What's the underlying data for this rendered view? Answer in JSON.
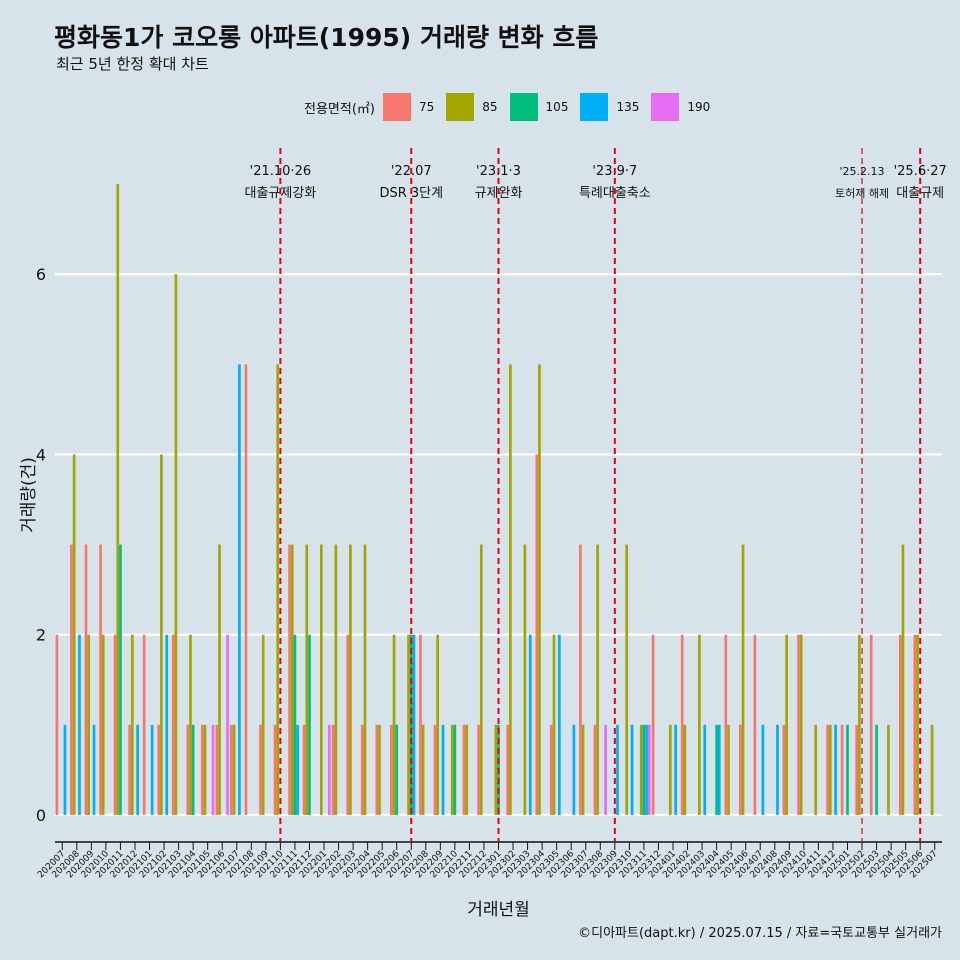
{
  "title": "평화동1가 코오롱 아파트(1995) 거래량 변화 흐름",
  "subtitle": "최근 5년 한정 확대 차트",
  "caption": "©디아파트(dapt.kr) / 2025.07.15 / 자료=국토교통부 실거래가",
  "legend": {
    "title": "전용면적(㎡)",
    "items": [
      {
        "label": "75",
        "color": "#f8766d"
      },
      {
        "label": "85",
        "color": "#a3a500"
      },
      {
        "label": "105",
        "color": "#00bf7d"
      },
      {
        "label": "135",
        "color": "#00b0f6"
      },
      {
        "label": "190",
        "color": "#e76bf3"
      }
    ]
  },
  "chart_data": {
    "type": "bar",
    "xlabel": "거래년월",
    "ylabel": "거래량(건)",
    "ylim": [
      -0.3,
      7.4
    ],
    "yticks": [
      0,
      2,
      4,
      6
    ],
    "grid": true,
    "months": [
      "202007",
      "202008",
      "202009",
      "202010",
      "202011",
      "202012",
      "202101",
      "202102",
      "202103",
      "202104",
      "202105",
      "202106",
      "202107",
      "202108",
      "202109",
      "202110",
      "202111",
      "202112",
      "202201",
      "202202",
      "202203",
      "202204",
      "202205",
      "202206",
      "202207",
      "202208",
      "202209",
      "202210",
      "202211",
      "202212",
      "202301",
      "202302",
      "202303",
      "202304",
      "202305",
      "202306",
      "202307",
      "202308",
      "202309",
      "202310",
      "202311",
      "202312",
      "202401",
      "202402",
      "202403",
      "202404",
      "202405",
      "202406",
      "202407",
      "202408",
      "202409",
      "202410",
      "202411",
      "202412",
      "202501",
      "202502",
      "202503",
      "202504",
      "202505",
      "202506",
      "202507"
    ],
    "series": [
      {
        "name": "75",
        "color": "#f8766d",
        "values": [
          2,
          3,
          3,
          3,
          2,
          1,
          2,
          1,
          2,
          1,
          1,
          1,
          1,
          5,
          1,
          1,
          3,
          1,
          0,
          1,
          2,
          1,
          1,
          1,
          0,
          2,
          1,
          0,
          1,
          1,
          0,
          1,
          0,
          4,
          1,
          0,
          3,
          1,
          0,
          0,
          0,
          2,
          0,
          2,
          0,
          0,
          2,
          1,
          2,
          0,
          1,
          2,
          0,
          1,
          1,
          1,
          2,
          0,
          2,
          2,
          0
        ]
      },
      {
        "name": "85",
        "color": "#a3a500",
        "values": [
          0,
          4,
          2,
          2,
          7,
          2,
          0,
          4,
          6,
          2,
          1,
          3,
          1,
          0,
          2,
          5,
          3,
          3,
          3,
          3,
          3,
          3,
          1,
          2,
          2,
          1,
          2,
          1,
          1,
          3,
          1,
          5,
          3,
          5,
          2,
          0,
          1,
          3,
          0,
          3,
          1,
          0,
          1,
          1,
          2,
          0,
          1,
          3,
          0,
          0,
          2,
          2,
          1,
          1,
          0,
          2,
          0,
          1,
          3,
          2,
          1
        ]
      },
      {
        "name": "105",
        "color": "#00bf7d",
        "values": [
          0,
          0,
          0,
          0,
          3,
          0,
          0,
          0,
          0,
          1,
          0,
          0,
          0,
          0,
          0,
          0,
          2,
          2,
          0,
          0,
          0,
          0,
          0,
          1,
          2,
          0,
          0,
          1,
          0,
          0,
          1,
          0,
          0,
          0,
          0,
          0,
          0,
          0,
          0,
          0,
          1,
          0,
          0,
          0,
          0,
          1,
          0,
          0,
          0,
          0,
          0,
          0,
          0,
          0,
          1,
          0,
          1,
          0,
          0,
          0,
          0
        ]
      },
      {
        "name": "135",
        "color": "#00b0f6",
        "values": [
          1,
          2,
          1,
          0,
          0,
          1,
          1,
          2,
          0,
          0,
          0,
          0,
          5,
          0,
          0,
          0,
          1,
          0,
          0,
          0,
          0,
          0,
          0,
          0,
          2,
          0,
          1,
          0,
          0,
          0,
          0,
          0,
          2,
          0,
          2,
          1,
          0,
          0,
          1,
          1,
          1,
          0,
          1,
          0,
          1,
          1,
          0,
          0,
          1,
          1,
          0,
          0,
          0,
          1,
          0,
          0,
          0,
          0,
          0,
          0,
          0
        ]
      },
      {
        "name": "190",
        "color": "#e76bf3",
        "values": [
          0,
          0,
          0,
          0,
          0,
          0,
          0,
          0,
          0,
          0,
          1,
          2,
          0,
          0,
          0,
          0,
          0,
          0,
          1,
          0,
          0,
          0,
          0,
          0,
          0,
          0,
          0,
          0,
          0,
          0,
          0,
          0,
          0,
          0,
          0,
          0,
          0,
          1,
          0,
          0,
          1,
          0,
          0,
          0,
          0,
          0,
          0,
          0,
          0,
          0,
          0,
          0,
          0,
          0,
          0,
          0,
          0,
          0,
          0,
          0,
          0
        ]
      }
    ],
    "events": [
      {
        "month": "202110",
        "date": "'21.10·26",
        "label": "대출규제강화"
      },
      {
        "month": "202207",
        "date": "'22.07",
        "label": "DSR 3단계"
      },
      {
        "month": "202301",
        "date": "'23.1·3",
        "label": "규제완화"
      },
      {
        "month": "202309",
        "date": "'23.9·7",
        "label": "특례대출축소"
      },
      {
        "month": "202502",
        "date": "'25.2.13",
        "label": "토허제 해제"
      },
      {
        "month": "202506",
        "date": "'25.6·27",
        "label": "대출규제"
      }
    ]
  }
}
